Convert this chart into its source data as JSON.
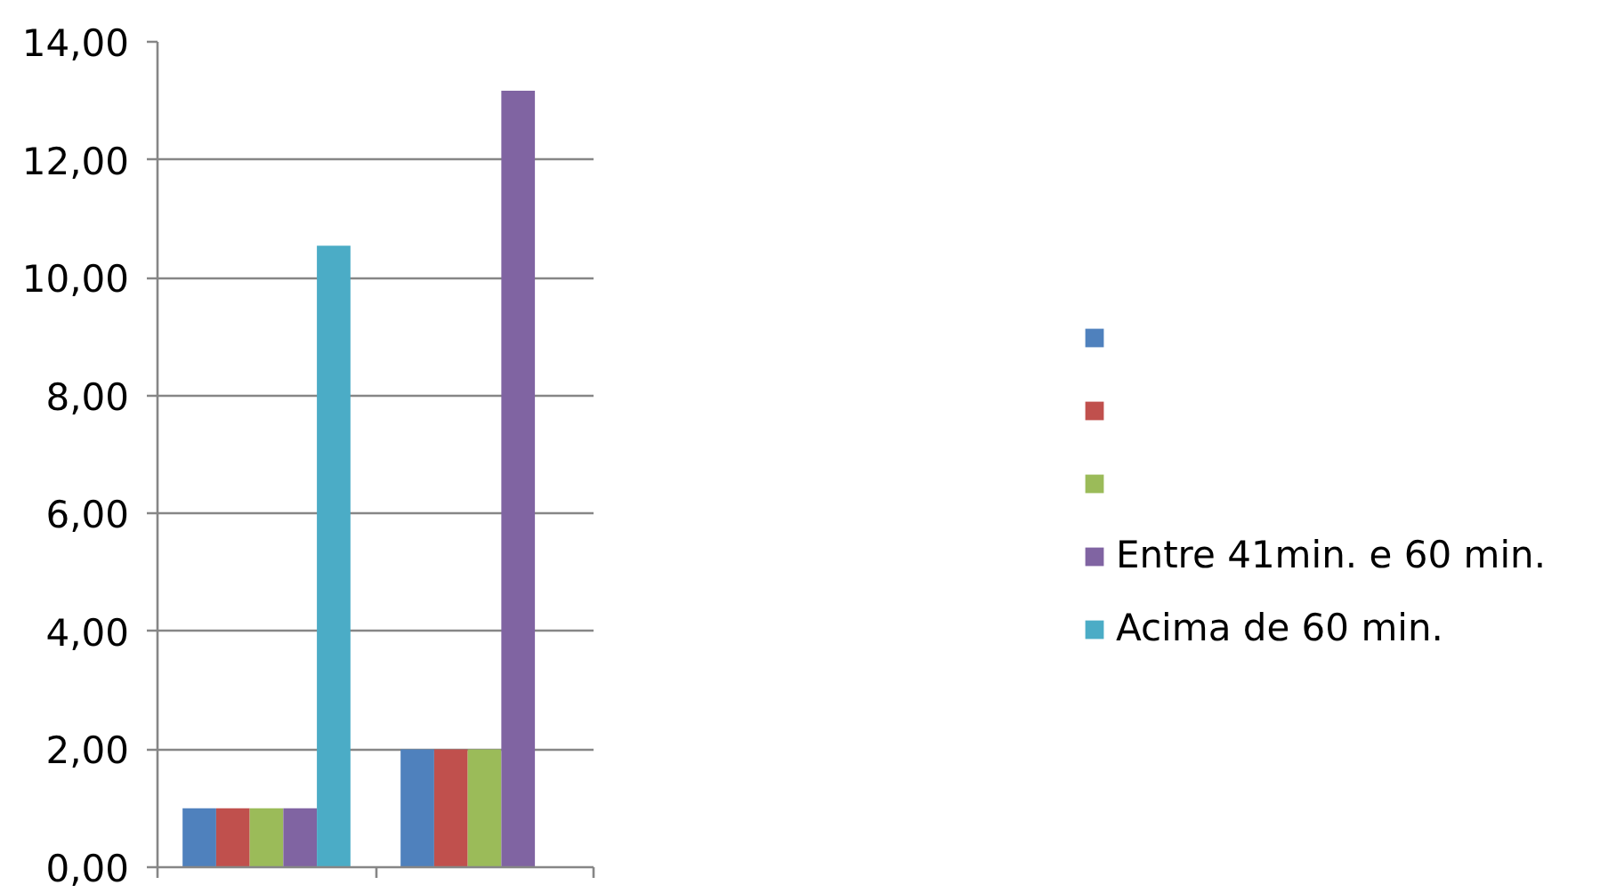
{
  "chart_data": {
    "type": "bar",
    "categories": [
      null,
      null
    ],
    "series": [
      {
        "color": "#4f81bd",
        "values": [
          1,
          2
        ]
      },
      {
        "color": "#c0504d",
        "values": [
          1,
          2
        ]
      },
      {
        "color": "#9bbb59",
        "values": [
          1,
          2
        ]
      },
      {
        "name": "Entre 41min. e 60 min.",
        "color": "#8064a2",
        "values": [
          1,
          13.17
        ]
      },
      {
        "name": "Acima de 60 min.",
        "color": "#4bacc6",
        "values": [
          10.54,
          null
        ]
      }
    ],
    "ylim": [
      0,
      14
    ],
    "yticks": [
      {
        "value": 0,
        "label": "0,00"
      },
      {
        "value": 2,
        "label": "2,00"
      },
      {
        "value": 4,
        "label": "4,00"
      },
      {
        "value": 6,
        "label": "6,00"
      },
      {
        "value": 8,
        "label": "8,00"
      },
      {
        "value": 10,
        "label": "10,00"
      },
      {
        "value": 12,
        "label": "12,00"
      },
      {
        "value": 14,
        "label": "14,00"
      }
    ],
    "grid": "y",
    "legend": "right",
    "tick_labels": "y"
  }
}
